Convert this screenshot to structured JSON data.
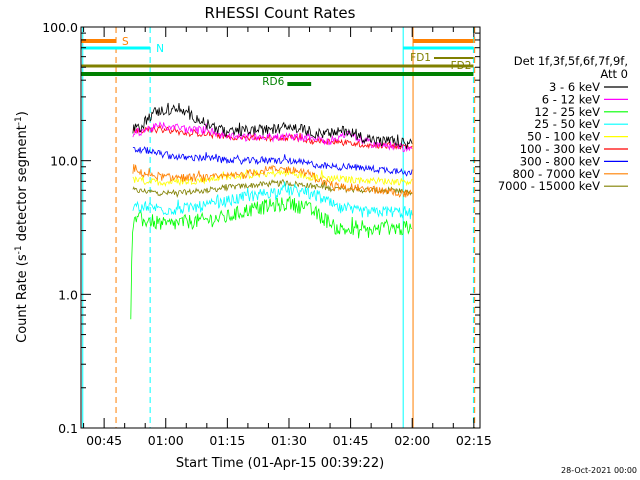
{
  "chart_data": {
    "type": "line",
    "title": "RHESSI Count Rates",
    "xlabel": "Start Time (01-Apr-15 00:39:22)",
    "ylabel_main": "Count Rate (s",
    "ylabel_sup1": "-1",
    "ylabel_mid": " detector segment",
    "ylabel_sup2": "-1",
    "ylabel_end": ")",
    "y_scale": "log",
    "ylim": [
      0.1,
      100
    ],
    "y_ticks": [
      {
        "value": 0.1,
        "label": "0.1"
      },
      {
        "value": 1,
        "label": "1.0"
      },
      {
        "value": 10,
        "label": "10.0"
      },
      {
        "value": 100,
        "label": "100.0"
      }
    ],
    "xlim_minutes": [
      39.37,
      136.5
    ],
    "x_ticks": [
      {
        "minute": 45,
        "label": "00:45"
      },
      {
        "minute": 60,
        "label": "01:00"
      },
      {
        "minute": 75,
        "label": "01:15"
      },
      {
        "minute": 90,
        "label": "01:30"
      },
      {
        "minute": 105,
        "label": "01:45"
      },
      {
        "minute": 120,
        "label": "02:00"
      },
      {
        "minute": 135,
        "label": "02:15"
      }
    ],
    "data_start_minute": 51.5,
    "data_end_minute": 120,
    "legend": {
      "placement": "right",
      "header_line1": "Det 1f,3f,5f,6f,7f,9f,",
      "header_line2": "Att 0",
      "entries": [
        {
          "label": "3 - 6 keV",
          "color": "#000000"
        },
        {
          "label": "6 - 12 keV",
          "color": "#ff00ff"
        },
        {
          "label": "12 - 25 keV",
          "color": "#00ff00"
        },
        {
          "label": "25 - 50 keV",
          "color": "#00ffff"
        },
        {
          "label": "50 - 100 keV",
          "color": "#ffff00"
        },
        {
          "label": "100 - 300 keV",
          "color": "#ff0000"
        },
        {
          "label": "300 - 800 keV",
          "color": "#0000ff"
        },
        {
          "label": "800 - 7000 keV",
          "color": "#ff8000"
        },
        {
          "label": "7000 - 15000 keV",
          "color": "#808000"
        }
      ]
    },
    "series": [
      {
        "name": "3 - 6 keV",
        "color": "#000000",
        "x": [
          52,
          54,
          57,
          60,
          63,
          66,
          70,
          75,
          80,
          85,
          90,
          94,
          97,
          100,
          104,
          108,
          112,
          116,
          120
        ],
        "y": [
          17,
          18,
          23,
          24,
          24,
          22,
          19,
          16,
          17,
          17,
          18,
          17,
          16,
          16,
          17,
          15,
          14,
          14,
          13
        ]
      },
      {
        "name": "6 - 12 keV",
        "color": "#ff00ff",
        "x": [
          52,
          55,
          58,
          62,
          66,
          70,
          75,
          80,
          85,
          90,
          95,
          100,
          104,
          108,
          112,
          116,
          120
        ],
        "y": [
          16,
          17,
          18,
          18,
          17,
          17,
          15,
          15,
          15,
          15,
          15,
          14,
          16,
          14,
          13,
          13,
          12
        ]
      },
      {
        "name": "12 - 25 keV",
        "color": "#00ff00",
        "x": [
          51.5,
          52,
          53,
          56,
          60,
          65,
          70,
          75,
          80,
          85,
          90,
          94,
          98,
          102,
          106,
          110,
          114,
          118,
          120
        ],
        "y": [
          0.65,
          3.2,
          3.6,
          3.6,
          3.3,
          3.5,
          3.6,
          3.8,
          4.3,
          4.6,
          4.8,
          4.5,
          3.8,
          3.1,
          3.0,
          3.0,
          3.2,
          3.1,
          3.0
        ]
      },
      {
        "name": "25 - 50 keV",
        "color": "#00ffff",
        "x": [
          52,
          55,
          60,
          65,
          70,
          75,
          80,
          85,
          90,
          94,
          98,
          102,
          106,
          110,
          114,
          118,
          120
        ],
        "y": [
          4.5,
          4.6,
          4.3,
          4.4,
          4.6,
          5.0,
          5.4,
          5.8,
          6.0,
          5.8,
          5.2,
          4.4,
          4.2,
          4.1,
          4.2,
          4.1,
          4.0
        ]
      },
      {
        "name": "50 - 100 keV",
        "color": "#ffff00",
        "x": [
          52,
          55,
          60,
          65,
          70,
          75,
          80,
          85,
          90,
          95,
          100,
          105,
          110,
          115,
          120
        ],
        "y": [
          7.2,
          7.0,
          6.9,
          7.0,
          7.2,
          7.6,
          7.8,
          8.0,
          8.1,
          7.6,
          7.4,
          7.2,
          7.1,
          7.0,
          7.0
        ]
      },
      {
        "name": "100 - 300 keV",
        "color": "#ff0000",
        "x": [
          52,
          55,
          60,
          65,
          70,
          75,
          80,
          85,
          90,
          95,
          100,
          105,
          110,
          115,
          120
        ],
        "y": [
          17,
          17,
          17,
          16,
          16,
          15,
          15,
          14.5,
          15,
          14,
          14,
          13.5,
          13,
          13,
          12.5
        ]
      },
      {
        "name": "300 - 800 keV",
        "color": "#0000ff",
        "x": [
          52,
          55,
          60,
          65,
          70,
          75,
          80,
          85,
          90,
          95,
          100,
          105,
          110,
          115,
          120
        ],
        "y": [
          12,
          12,
          11,
          10.5,
          10.5,
          10,
          10,
          10,
          10,
          9.5,
          9,
          9,
          8.7,
          8.5,
          8.2
        ]
      },
      {
        "name": "800 - 7000 keV",
        "color": "#ff8000",
        "x": [
          52,
          55,
          60,
          65,
          70,
          75,
          80,
          85,
          90,
          94,
          98,
          102,
          106,
          110,
          114,
          118,
          120
        ],
        "y": [
          8.3,
          8.0,
          7.5,
          7.5,
          7.4,
          7.6,
          8.0,
          8.6,
          8.6,
          8.2,
          7.0,
          6.4,
          6.3,
          6.1,
          5.9,
          5.7,
          5.6
        ]
      },
      {
        "name": "7000 - 15000 keV",
        "color": "#808000",
        "x": [
          52,
          55,
          60,
          65,
          70,
          75,
          80,
          85,
          90,
          95,
          100,
          105,
          110,
          115,
          120
        ],
        "y": [
          6.0,
          5.9,
          5.7,
          5.8,
          6.0,
          6.3,
          6.5,
          6.7,
          6.8,
          6.5,
          6.2,
          6.1,
          6.0,
          5.9,
          5.8
        ]
      }
    ],
    "vertical_markers": [
      {
        "minute": 39.8,
        "color": "#00ffff",
        "style": "solid"
      },
      {
        "minute": 47.9,
        "color": "#ff8000",
        "style": "dashed"
      },
      {
        "minute": 56.2,
        "color": "#00ffff",
        "style": "dashed"
      },
      {
        "minute": 117.8,
        "color": "#00ffff",
        "style": "solid"
      },
      {
        "minute": 120.2,
        "color": "#ff8000",
        "style": "solid"
      },
      {
        "minute": 134.9,
        "color": "#00ffff",
        "style": "dashed"
      },
      {
        "minute": 135.2,
        "color": "#ff8000",
        "style": "dashed"
      }
    ],
    "flag_bars": [
      {
        "label": "S",
        "color": "#ff8000",
        "x_start": 39.5,
        "x_end": 47.9,
        "level": 0,
        "label_side": "right"
      },
      {
        "label": "N",
        "color": "#00ffff",
        "x_start": 39.5,
        "x_end": 56.2,
        "level": 1,
        "label_side": "right"
      },
      {
        "label": "S",
        "color": "#ff8000",
        "x_start": 120.2,
        "x_end": 134.9,
        "level": 0,
        "label_side": "none"
      },
      {
        "label": "N",
        "color": "#00ffff",
        "x_start": 117.8,
        "x_end": 134.9,
        "level": 1,
        "label_side": "none"
      },
      {
        "label": "FD1",
        "color": "#808000",
        "x_start": 125.3,
        "x_end": 134.9,
        "level": 2,
        "label_side": "left"
      },
      {
        "label": "FD2",
        "color": "#808000",
        "x_start": 127,
        "x_end": 134.9,
        "level": 3,
        "label_side": "right-inside"
      },
      {
        "label": "",
        "color": "#808000",
        "x_start": 39.5,
        "x_end": 134.9,
        "level": 4,
        "label_side": "none"
      },
      {
        "label": "RD6",
        "color": "#008000",
        "x_start": 39.5,
        "x_end": 134.9,
        "level": 5,
        "label_side": "none"
      },
      {
        "label": "RD6",
        "color": "#008000",
        "x_start": 89.6,
        "x_end": 95.4,
        "level": 6,
        "label_side": "left"
      }
    ],
    "footer_date": "28-Oct-2021 00:00"
  }
}
